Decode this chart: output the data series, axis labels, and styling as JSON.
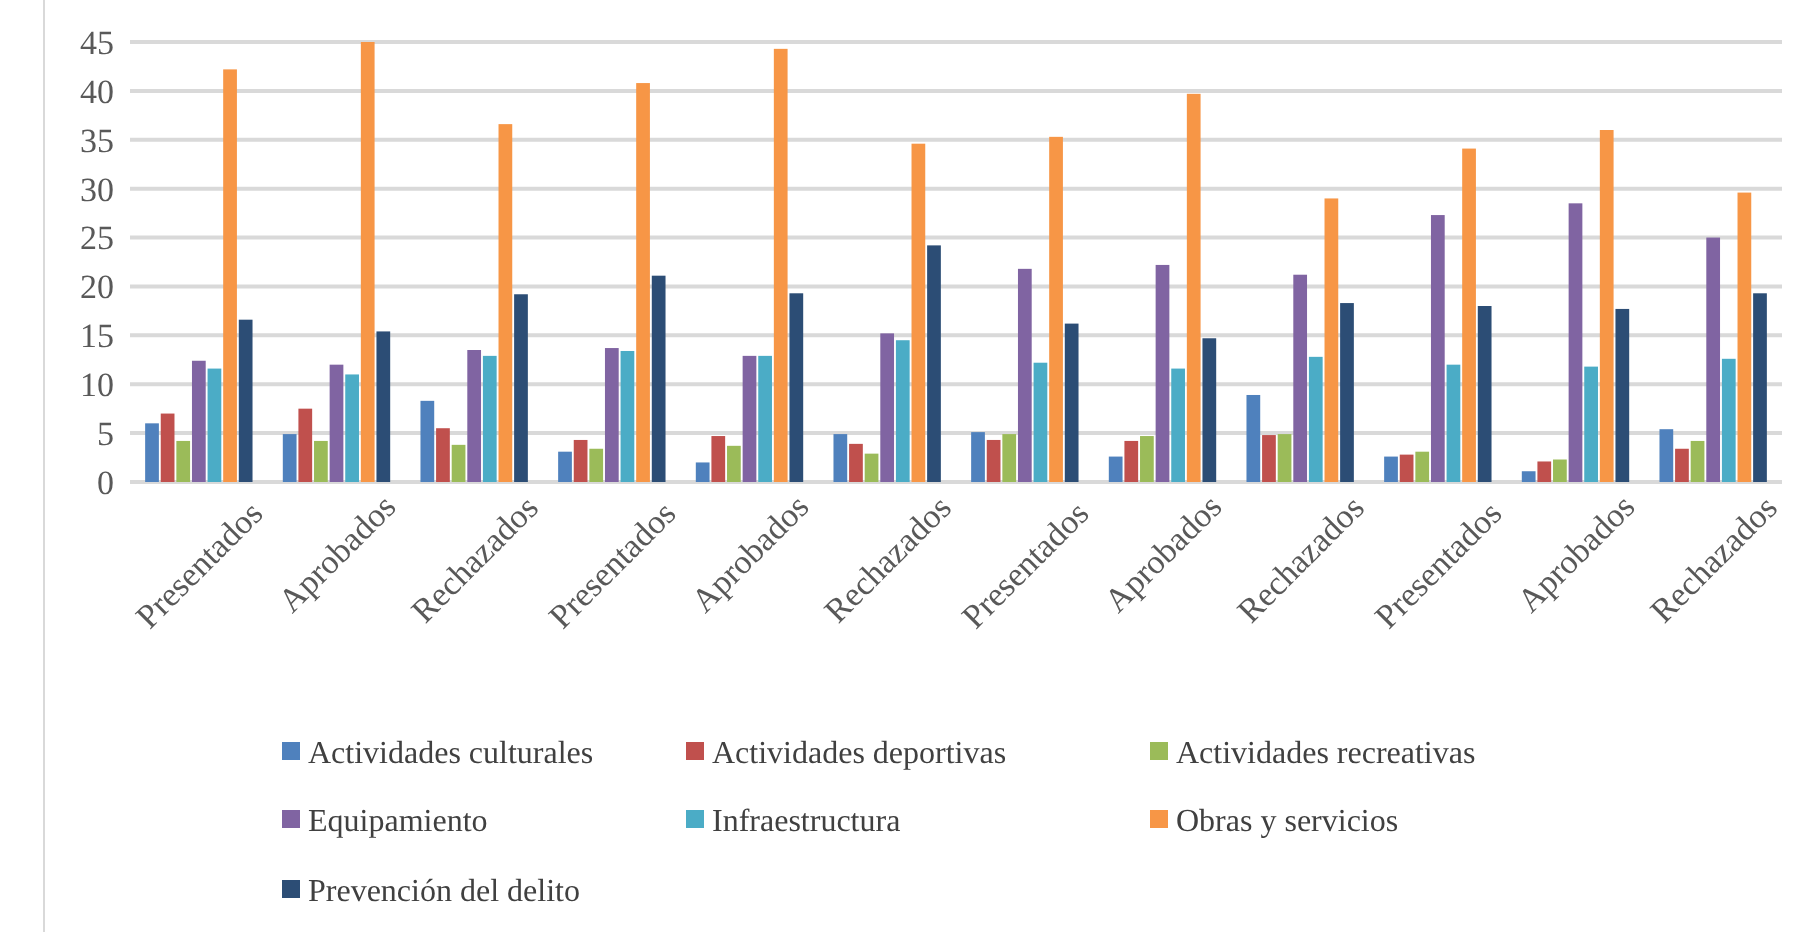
{
  "chart_data": {
    "type": "bar",
    "categories": [
      "Presentados",
      "Aprobados",
      "Rechazados",
      "Presentados",
      "Aprobados",
      "Rechazados",
      "Presentados",
      "Aprobados",
      "Rechazados",
      "Presentados",
      "Aprobados",
      "Rechazados"
    ],
    "series": [
      {
        "name": "Actividades culturales",
        "color": "#4f81bd",
        "values": [
          6,
          4.9,
          8.3,
          3.1,
          2,
          4.9,
          5.1,
          2.6,
          8.9,
          2.6,
          1.1,
          5.4
        ]
      },
      {
        "name": "Actividades deportivas",
        "color": "#c0504d",
        "values": [
          7,
          7.5,
          5.5,
          4.3,
          4.7,
          3.9,
          4.3,
          4.2,
          4.8,
          2.8,
          2.1,
          3.4
        ]
      },
      {
        "name": "Actividades recreativas",
        "color": "#9bbb59",
        "values": [
          4.2,
          4.2,
          3.8,
          3.4,
          3.7,
          2.9,
          4.9,
          4.7,
          4.9,
          3.1,
          2.3,
          4.2
        ]
      },
      {
        "name": "Equipamiento",
        "color": "#8064a2",
        "values": [
          12.4,
          12,
          13.5,
          13.7,
          12.9,
          15.2,
          21.8,
          22.2,
          21.2,
          27.3,
          28.5,
          25
        ]
      },
      {
        "name": "Infraestructura",
        "color": "#4bacc6",
        "values": [
          11.6,
          11,
          12.9,
          13.4,
          12.9,
          14.5,
          12.2,
          11.6,
          12.8,
          12,
          11.8,
          12.6
        ]
      },
      {
        "name": "Obras y servicios",
        "color": "#f79646",
        "values": [
          42.2,
          45,
          36.6,
          40.8,
          44.3,
          34.6,
          35.3,
          39.7,
          29,
          34.1,
          36,
          29.6
        ]
      },
      {
        "name": "Prevención del delito",
        "color": "#2c4d75",
        "values": [
          16.6,
          15.4,
          19.2,
          21.1,
          19.3,
          24.2,
          16.2,
          14.7,
          18.3,
          18,
          17.7,
          19.3
        ]
      }
    ],
    "ylim": [
      0,
      45
    ],
    "yticks": [
      0,
      5,
      10,
      15,
      20,
      25,
      30,
      35,
      40,
      45
    ],
    "grid": "y",
    "legend": "bottom"
  }
}
